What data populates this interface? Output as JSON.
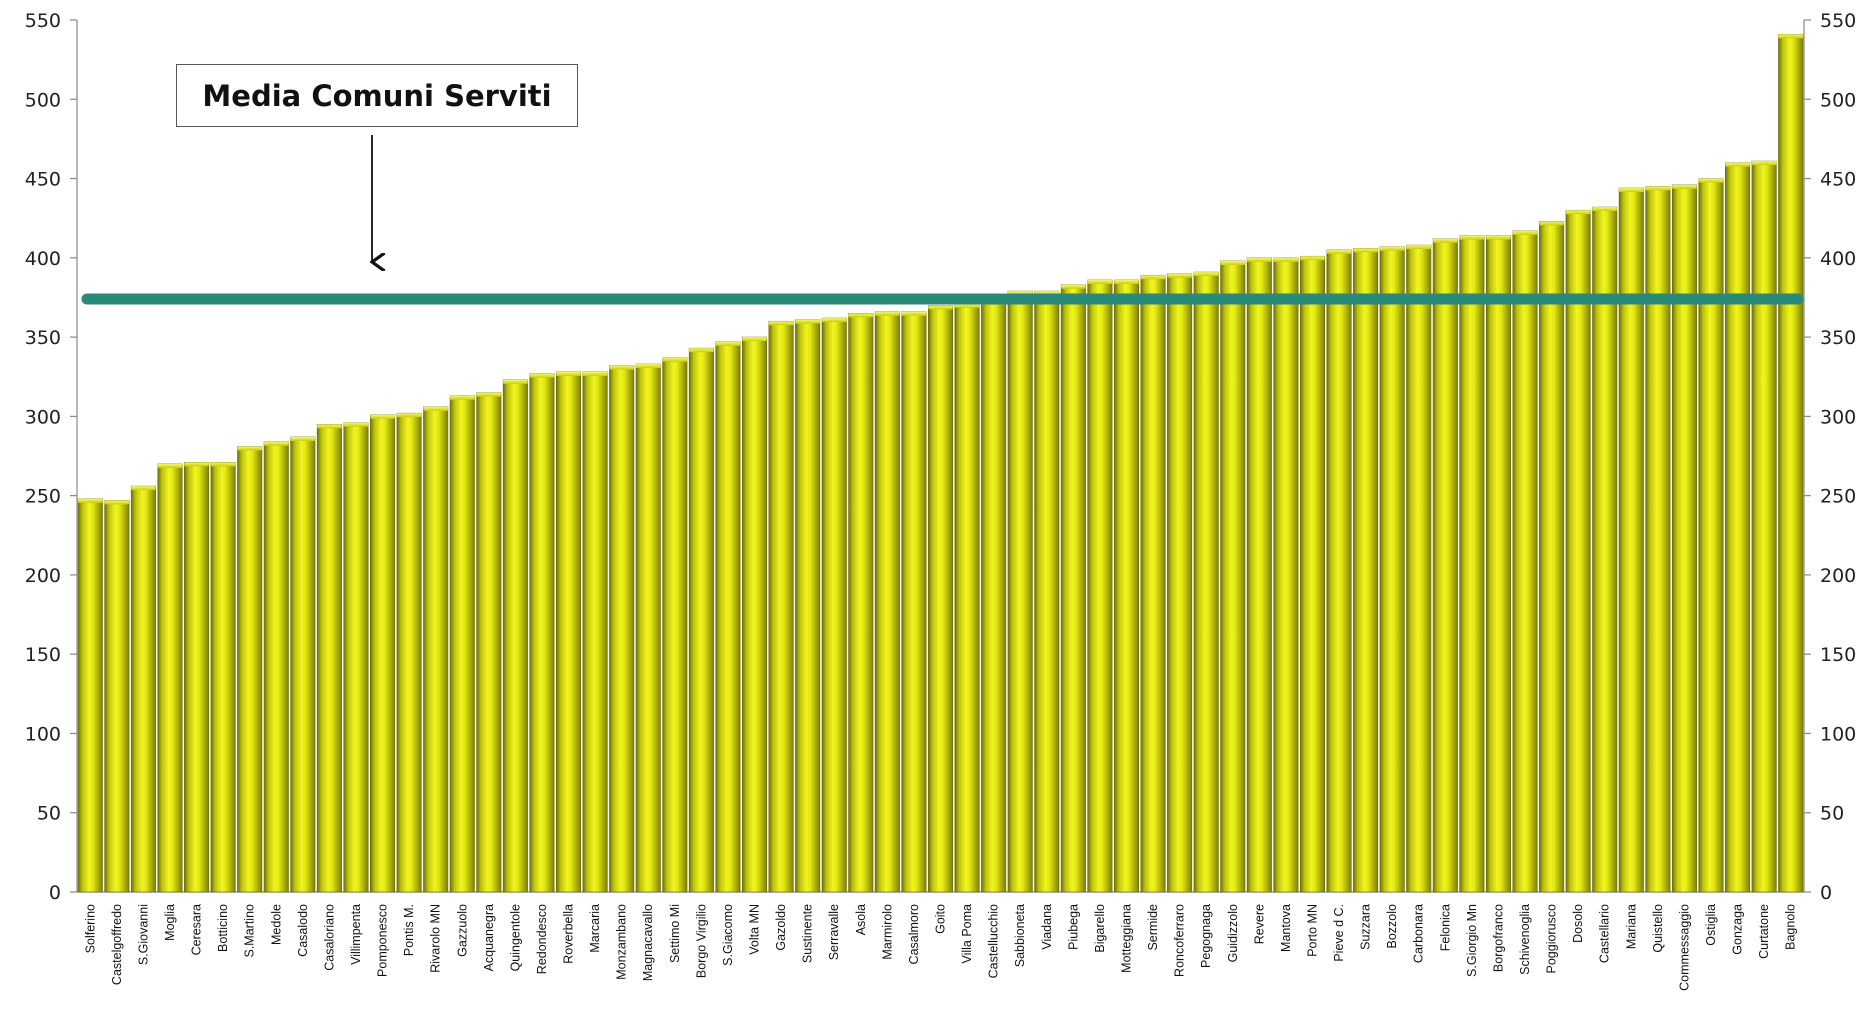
{
  "chart_data": {
    "type": "bar",
    "title": "",
    "xlabel": "",
    "ylabel": "",
    "ylim": [
      0,
      550
    ],
    "yticks": [
      0,
      50,
      100,
      150,
      200,
      250,
      300,
      350,
      400,
      450,
      500,
      550
    ],
    "grid": false,
    "legend": "none",
    "categories": [
      "Solferino",
      "Castelgoffredo",
      "S.Giovanni",
      "Moglia",
      "Ceresara",
      "Botticino",
      "S.Martino",
      "Medole",
      "Casalodo",
      "Casaloriano",
      "Villimpenta",
      "Pomponesco",
      "Pontis M.",
      "Rivarolo MN",
      "Gazzuolo",
      "Acquanegra",
      "Quingentole",
      "Redondesco",
      "Roverbella",
      "Marcaria",
      "Monzambano",
      "Magnacavallo",
      "Settimo Mi",
      "Borgo Virgilio",
      "S.Giacomo",
      "Volta MN",
      "Gazoldo",
      "Sustinente",
      "Serravalle",
      "Asola",
      "Marmirolo",
      "Casalmoro",
      "Goito",
      "Villa Poma",
      "Castellucchio",
      "Sabbioneta",
      "Viadana",
      "Piubega",
      "Bigarello",
      "Motteggiana",
      "Sermide",
      "Roncoferraro",
      "Pegognaga",
      "Guidizzolo",
      "Revere",
      "Mantova",
      "Porto MN",
      "Pieve d C.",
      "Suzzara",
      "Bozzolo",
      "Carbonara",
      "Felonica",
      "S.Giorgio Mn",
      "Borgofranco",
      "Schivenoglia",
      "Poggiorusco",
      "Dosolo",
      "Castellario",
      "Mariana",
      "Quistello",
      "Commessaggio",
      "Ostiglia",
      "Gonzaga",
      "Curtatone",
      "Bagnolo"
    ],
    "values": [
      248,
      247,
      256,
      270,
      271,
      271,
      281,
      284,
      287,
      295,
      296,
      301,
      302,
      306,
      313,
      315,
      323,
      327,
      328,
      328,
      332,
      333,
      337,
      343,
      347,
      350,
      360,
      361,
      362,
      365,
      366,
      366,
      370,
      371,
      373,
      379,
      379,
      383,
      386,
      386,
      389,
      390,
      391,
      398,
      400,
      400,
      401,
      405,
      406,
      407,
      408,
      412,
      414,
      414,
      417,
      423,
      430,
      432,
      444,
      445,
      446,
      450,
      460,
      461,
      541
    ],
    "series": [
      {
        "name": "",
        "color": "#d8dc0a"
      }
    ],
    "reference_line": {
      "label": "Media Comuni Serviti",
      "value": 374,
      "color": "#2a8a7a"
    }
  }
}
